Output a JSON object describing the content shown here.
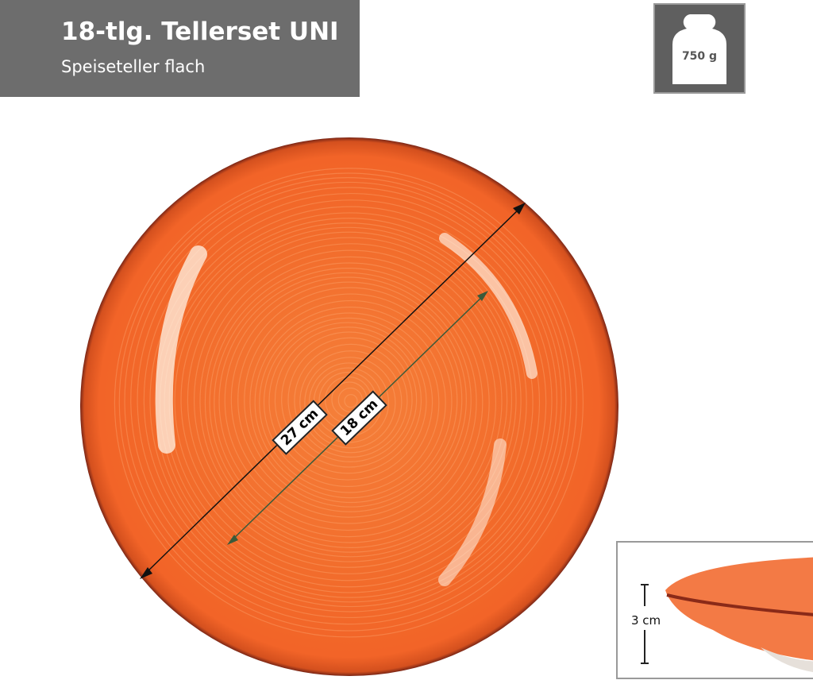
{
  "header": {
    "title": "18-tlg. Tellerset UNI",
    "subtitle": "Speiseteller flach"
  },
  "weight": {
    "icon": "weight-icon",
    "value": "750 g"
  },
  "dimensions": {
    "outer_diameter": "27 cm",
    "inner_diameter": "18 cm",
    "height": "3 cm"
  },
  "colors": {
    "header_bg": "#6d6d6d",
    "plate_orange": "#f26a2a",
    "plate_rim": "#8a2a18"
  }
}
